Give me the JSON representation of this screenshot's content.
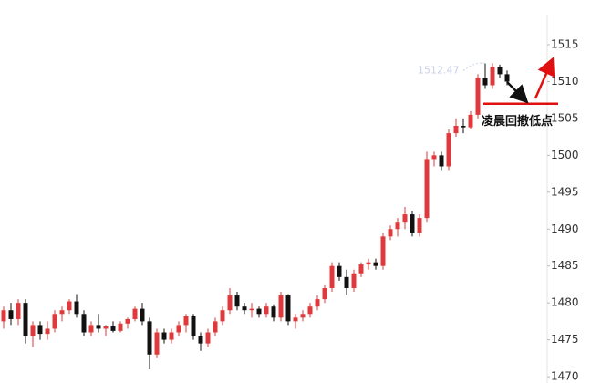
{
  "chart_data": {
    "type": "candlestick",
    "open": [
      1477.5,
      1479,
      1477.8,
      1480,
      1475.5,
      1477,
      1475.8,
      1476.5,
      1478.5,
      1479,
      1480.2,
      1478.5,
      1476,
      1477,
      1476.5,
      1476.8,
      1476.2,
      1477.2,
      1477.8,
      1479.2,
      1477.5,
      1473,
      1476,
      1475,
      1476,
      1477,
      1478.2,
      1475.5,
      1474.5,
      1476,
      1477.5,
      1479,
      1481,
      1479.5,
      1479,
      1479.2,
      1478.5,
      1479.5,
      1478,
      1481,
      1477.5,
      1478,
      1478.5,
      1479.5,
      1480.5,
      1482,
      1485,
      1483.5,
      1482,
      1484,
      1485.2,
      1485.5,
      1485,
      1489,
      1490,
      1491,
      1492,
      1489.5,
      1491.5,
      1499.5,
      1500,
      1498.5,
      1503,
      1504,
      1503.8,
      1505.5,
      1510.5,
      1509.5,
      1512,
      1511
    ],
    "high": [
      1479.5,
      1480,
      1480.5,
      1480.5,
      1477.5,
      1477.5,
      1477.5,
      1479,
      1479.5,
      1480.5,
      1481.2,
      1479,
      1477.5,
      1478.5,
      1477,
      1477.5,
      1477.5,
      1478,
      1479.5,
      1480,
      1478,
      1476.5,
      1476.5,
      1476.5,
      1477.5,
      1478.5,
      1478.5,
      1476,
      1476.5,
      1478,
      1479.5,
      1482,
      1481.5,
      1480,
      1480,
      1479.5,
      1480,
      1479.8,
      1481.5,
      1481.2,
      1478.5,
      1479,
      1480,
      1481,
      1482.5,
      1485.5,
      1485.5,
      1484.5,
      1484.5,
      1485.5,
      1486,
      1486,
      1489.5,
      1490.5,
      1491.5,
      1493,
      1492.5,
      1492,
      1500.5,
      1500.5,
      1500.5,
      1503.5,
      1505,
      1505,
      1506,
      1511,
      1512.47,
      1512.5,
      1512.3,
      1511.5
    ],
    "low": [
      1476.5,
      1477,
      1477,
      1474.5,
      1474,
      1475,
      1475,
      1476,
      1477.5,
      1478.5,
      1478,
      1475.5,
      1475.5,
      1476,
      1475.5,
      1476,
      1476,
      1476.5,
      1477.5,
      1477,
      1471,
      1472.5,
      1474.5,
      1474.5,
      1475.5,
      1476,
      1475,
      1473.5,
      1474,
      1475.5,
      1477,
      1478.5,
      1479,
      1478.5,
      1478,
      1478,
      1478,
      1477.5,
      1477.5,
      1477,
      1476.5,
      1477.5,
      1478,
      1479,
      1480,
      1481.5,
      1483,
      1481,
      1481.5,
      1483.5,
      1484.5,
      1484.5,
      1484.5,
      1488.5,
      1489,
      1490,
      1489,
      1489,
      1491,
      1498.5,
      1498,
      1498,
      1502.5,
      1503,
      1503.5,
      1505,
      1509,
      1509,
      1510.5,
      1509.5
    ],
    "close": [
      1479,
      1477.8,
      1480,
      1475.5,
      1477,
      1475.8,
      1476.5,
      1478.5,
      1479,
      1480.2,
      1478.5,
      1476,
      1477,
      1476.5,
      1476.8,
      1476.2,
      1477.2,
      1477.8,
      1479.2,
      1477.5,
      1473,
      1476,
      1475,
      1476,
      1477,
      1478.2,
      1475.5,
      1474.5,
      1476,
      1477.5,
      1479,
      1481,
      1479.5,
      1479,
      1479.2,
      1478.5,
      1479.5,
      1478,
      1481,
      1477.5,
      1478,
      1478.5,
      1479.5,
      1480.5,
      1482,
      1485,
      1483.5,
      1482,
      1484,
      1485.2,
      1485.5,
      1485,
      1489,
      1490,
      1491,
      1492,
      1489.5,
      1491.5,
      1499.5,
      1500,
      1498.5,
      1503,
      1504,
      1503.8,
      1505.5,
      1510.5,
      1509.5,
      1512,
      1511,
      1510
    ],
    "up_color": "#e0393b",
    "down_color": "#111111",
    "ylim": [
      1469.14,
      1521.06
    ],
    "yticks": [
      1470,
      1475,
      1480,
      1485,
      1490,
      1495,
      1500,
      1505,
      1510,
      1515
    ],
    "high_label": {
      "text": "1512.47",
      "value": 1512.47
    },
    "support_line": {
      "text": "凌晨回撤低点",
      "value": 1507
    }
  }
}
